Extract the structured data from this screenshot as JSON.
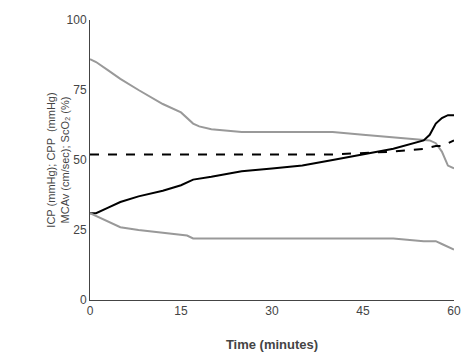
{
  "chart_data": {
    "type": "line",
    "xlabel": "Time (minutes)",
    "ylabel": "ICP (mmHg); CPP  (mmHg)\nMCAv (cm/sec); ScO₂ (%)",
    "xlim": [
      0,
      60
    ],
    "ylim": [
      0,
      100
    ],
    "xticks": [
      0,
      15,
      30,
      45,
      60
    ],
    "yticks": [
      0,
      25,
      50,
      75,
      100
    ],
    "grid": false,
    "series": [
      {
        "color": "#999999",
        "line_style": "solid",
        "x": [
          0,
          1,
          3,
          5,
          8,
          12,
          15,
          16,
          17,
          18,
          20,
          25,
          30,
          35,
          40,
          45,
          50,
          55,
          56,
          57,
          58,
          59,
          60
        ],
        "values": [
          86,
          85,
          82,
          79,
          75,
          70,
          67,
          65,
          63,
          62,
          61,
          60,
          60,
          60,
          60,
          59,
          58,
          57,
          57,
          56,
          53,
          48,
          47
        ]
      },
      {
        "color": "#000000",
        "line_style": "dashed",
        "x": [
          0,
          10,
          20,
          30,
          40,
          50,
          55,
          57,
          58,
          59,
          60
        ],
        "values": [
          52,
          52,
          52,
          52,
          52,
          53,
          54,
          55,
          55,
          56,
          57
        ]
      },
      {
        "color": "#000000",
        "line_style": "solid",
        "x": [
          0,
          1,
          3,
          5,
          8,
          12,
          15,
          17,
          20,
          25,
          30,
          35,
          40,
          45,
          50,
          55,
          56,
          57,
          58,
          59,
          60
        ],
        "values": [
          31,
          31,
          33,
          35,
          37,
          39,
          41,
          43,
          44,
          46,
          47,
          48,
          50,
          52,
          54,
          57,
          59,
          63,
          65,
          66,
          66
        ]
      },
      {
        "color": "#999999",
        "line_style": "solid",
        "x": [
          0,
          1,
          3,
          5,
          8,
          12,
          15,
          16,
          17,
          20,
          25,
          30,
          35,
          40,
          45,
          50,
          55,
          57,
          58,
          59,
          60
        ],
        "values": [
          31,
          30,
          28,
          26,
          25,
          24,
          23,
          23,
          22,
          22,
          22,
          22,
          22,
          22,
          22,
          22,
          21,
          21,
          20,
          19,
          18
        ]
      }
    ]
  }
}
